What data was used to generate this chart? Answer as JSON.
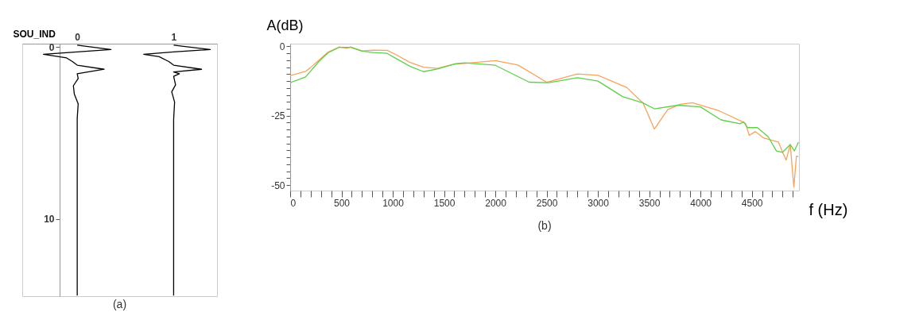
{
  "chart_data": [
    {
      "type": "line",
      "xlabel": "SOU_IND",
      "annotations": [
        "(a)"
      ],
      "xlim": [
        -0.57,
        1.45
      ],
      "ylim": [
        14.5,
        -0.2
      ],
      "xticks": [
        0,
        1
      ],
      "yticks": [
        0,
        10
      ],
      "grid": false,
      "legend": false,
      "series": [
        {
          "color": "#000000",
          "x": [
            0,
            0.35,
            0,
            -0.35,
            -0.19,
            -0.11,
            -0.05,
            0,
            0.28,
            0,
            0.01,
            -0.04,
            -0.03,
            0.01,
            0,
            0
          ],
          "values": [
            -0.11,
            0.14,
            0.28,
            0.42,
            0.56,
            0.63,
            0.84,
            1.05,
            1.29,
            1.55,
            1.83,
            2.25,
            2.74,
            3.3,
            4.15,
            14.47
          ]
        },
        {
          "color": "#000000",
          "x": [
            1,
            1.38,
            1,
            0.69,
            0.85,
            0.95,
            1,
            1.29,
            1,
            1.06,
            1,
            1.02,
            0.98,
            1.01,
            1,
            1
          ],
          "values": [
            -0.11,
            0.14,
            0.28,
            0.42,
            0.56,
            0.84,
            1.05,
            1.29,
            1.45,
            1.55,
            1.7,
            2.2,
            2.6,
            3.2,
            4.2,
            14.47
          ]
        }
      ]
    },
    {
      "type": "line",
      "xlabel": "f (Hz)",
      "ylabel": "A(dB)",
      "annotations": [
        "(b)"
      ],
      "xlim": [
        0,
        4960
      ],
      "ylim": [
        -52,
        1
      ],
      "grid": false,
      "legend": false,
      "xticks": [
        0,
        {
          "value": 100,
          "label": null
        },
        {
          "value": 200,
          "label": null
        },
        {
          "value": 300,
          "label": null
        },
        {
          "value": 400,
          "label": null
        },
        500,
        {
          "value": 600,
          "label": null
        },
        {
          "value": 700,
          "label": null
        },
        {
          "value": 800,
          "label": null
        },
        {
          "value": 900,
          "label": null
        },
        1000,
        {
          "value": 1100,
          "label": null
        },
        {
          "value": 1200,
          "label": null
        },
        {
          "value": 1300,
          "label": null
        },
        {
          "value": 1400,
          "label": null
        },
        1500,
        {
          "value": 1600,
          "label": null
        },
        {
          "value": 1700,
          "label": null
        },
        {
          "value": 1800,
          "label": null
        },
        {
          "value": 1900,
          "label": null
        },
        2000,
        {
          "value": 2100,
          "label": null
        },
        {
          "value": 2200,
          "label": null
        },
        {
          "value": 2300,
          "label": null
        },
        {
          "value": 2400,
          "label": null
        },
        2500,
        {
          "value": 2600,
          "label": null
        },
        {
          "value": 2700,
          "label": null
        },
        {
          "value": 2800,
          "label": null
        },
        {
          "value": 2900,
          "label": null
        },
        3000,
        {
          "value": 3100,
          "label": null
        },
        {
          "value": 3200,
          "label": null
        },
        {
          "value": 3300,
          "label": null
        },
        {
          "value": 3400,
          "label": null
        },
        3500,
        {
          "value": 3600,
          "label": null
        },
        {
          "value": 3700,
          "label": null
        },
        {
          "value": 3800,
          "label": null
        },
        {
          "value": 3900,
          "label": null
        },
        4000,
        {
          "value": 4100,
          "label": null
        },
        {
          "value": 4200,
          "label": null
        },
        {
          "value": 4300,
          "label": null
        },
        {
          "value": 4400,
          "label": null
        },
        4500,
        {
          "value": 4600,
          "label": null
        },
        {
          "value": 4700,
          "label": null
        },
        {
          "value": 4800,
          "label": null
        },
        {
          "value": 4900,
          "label": null
        }
      ],
      "yticks": [
        0,
        {
          "value": -2.5,
          "label": null
        },
        {
          "value": -5,
          "label": null
        },
        {
          "value": -7.5,
          "label": null
        },
        {
          "value": -10,
          "label": null
        },
        {
          "value": -12.5,
          "label": null
        },
        {
          "value": -15,
          "label": null
        },
        {
          "value": -17.5,
          "label": null
        },
        {
          "value": -20,
          "label": null
        },
        {
          "value": -22.5,
          "label": null
        },
        -25,
        {
          "value": -27.5,
          "label": null
        },
        {
          "value": -30,
          "label": null
        },
        {
          "value": -32.5,
          "label": null
        },
        {
          "value": -35,
          "label": null
        },
        {
          "value": -37.5,
          "label": null
        },
        {
          "value": -40,
          "label": null
        },
        {
          "value": -42.5,
          "label": null
        },
        {
          "value": -45,
          "label": null
        },
        {
          "value": -47.5,
          "label": null
        },
        -50
      ],
      "series": [
        {
          "color": "#f7a35c",
          "x": [
            0,
            150,
            195,
            283,
            370,
            480,
            550,
            590,
            700,
            810,
            945,
            1035,
            1170,
            1300,
            1435,
            1610,
            1700,
            2000,
            2220,
            2500,
            2800,
            3000,
            3280,
            3440,
            3550,
            3680,
            3800,
            3920,
            4180,
            4410,
            4440,
            4475,
            4535,
            4615,
            4680,
            4760,
            4800,
            4835,
            4875,
            4910,
            4935,
            4955
          ],
          "values": [
            -10.5,
            -9,
            -7.7,
            -4.9,
            -2,
            -0.2,
            -0.7,
            -0.2,
            -1.6,
            -1.3,
            -1.4,
            -3,
            -5.8,
            -7.5,
            -7.9,
            -6.3,
            -6.1,
            -5.1,
            -6.7,
            -12.9,
            -9.9,
            -10.4,
            -14.8,
            -20.4,
            -29.8,
            -22.8,
            -20.9,
            -20.3,
            -23.2,
            -27.2,
            -27.9,
            -32.1,
            -30.7,
            -33,
            -33.7,
            -34.5,
            -38.2,
            -41,
            -35.4,
            -50.8,
            -39.6,
            -39.8
          ]
        },
        {
          "color": "#5dd04a",
          "x": [
            0,
            150,
            283,
            370,
            480,
            590,
            700,
            810,
            945,
            1035,
            1170,
            1300,
            1435,
            1610,
            1700,
            2000,
            2330,
            2520,
            2800,
            3000,
            3240,
            3440,
            3550,
            3780,
            4000,
            4200,
            4385,
            4420,
            4460,
            4555,
            4660,
            4740,
            4800,
            4875,
            4915,
            4955
          ],
          "values": [
            -13.1,
            -11,
            -5.3,
            -2.3,
            -0.3,
            -0.3,
            -1.7,
            -2.2,
            -2.5,
            -4.4,
            -7.2,
            -9.1,
            -8.1,
            -6.3,
            -5.9,
            -6.8,
            -12.9,
            -13.1,
            -11.3,
            -12.5,
            -18.1,
            -20.4,
            -22.5,
            -21.2,
            -21.8,
            -26.5,
            -27.9,
            -27.2,
            -29.3,
            -29.3,
            -32.6,
            -37.7,
            -38.2,
            -35.4,
            -37.7,
            -34.5
          ]
        }
      ]
    }
  ]
}
